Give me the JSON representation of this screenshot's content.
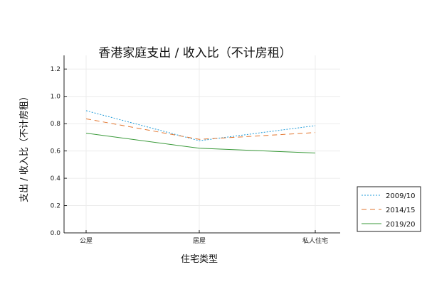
{
  "chart_data": {
    "type": "line",
    "title": "香港家庭支出 / 收入比（不计房租）",
    "xlabel": "住宅类型",
    "ylabel": "支出 / 收入比（不计房租）",
    "categories": [
      "公屋",
      "居屋",
      "私人住宅"
    ],
    "ylim": [
      0,
      1.3
    ],
    "yticks": [
      "0.0",
      "0.2",
      "0.4",
      "0.6",
      "0.8",
      "1.0",
      "1.2"
    ],
    "grid": true,
    "legend_position": "bottom-right outside",
    "series": [
      {
        "name": "2009/10",
        "values": [
          0.895,
          0.675,
          0.785
        ],
        "color": "#1f9bd8",
        "style": "dotted"
      },
      {
        "name": "2014/15",
        "values": [
          0.835,
          0.685,
          0.735
        ],
        "color": "#e2762f",
        "style": "dashed"
      },
      {
        "name": "2019/20",
        "values": [
          0.73,
          0.62,
          0.585
        ],
        "color": "#3a9a3a",
        "style": "solid"
      }
    ]
  }
}
